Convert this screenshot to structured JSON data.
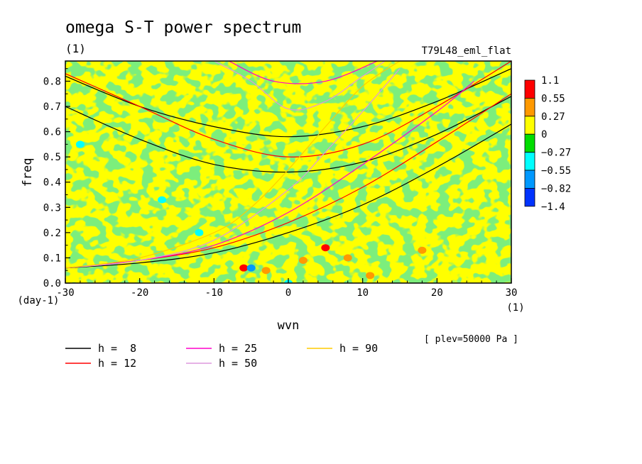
{
  "chart_data": {
    "type": "heatmap",
    "title": "omega S-T power spectrum",
    "subtitle": "(1)",
    "run_label": "T79L48_eml_flat",
    "xlabel": "wvn",
    "ylabel": "freq",
    "x_unit": "(1)",
    "y_unit": "(day-1)",
    "level_label": "[ plev=50000 Pa ]",
    "xlim": [
      -30,
      30
    ],
    "ylim": [
      0,
      0.88
    ],
    "x_ticks": [
      -30,
      -20,
      -10,
      0,
      10,
      20,
      30
    ],
    "x_tick_labels": [
      "-30",
      "-20",
      "-10",
      "0",
      "10",
      "20",
      "30"
    ],
    "y_ticks": [
      0,
      0.1,
      0.2,
      0.3,
      0.4,
      0.5,
      0.6,
      0.7,
      0.8
    ],
    "y_tick_labels": [
      "0.0",
      "0.1",
      "0.2",
      "0.3",
      "0.4",
      "0.5",
      "0.6",
      "0.7",
      "0.8"
    ],
    "colorbar": {
      "labels": [
        "1.1",
        "0.55",
        "0.27",
        "0",
        "−0.27",
        "−0.55",
        "−0.82",
        "−1.4"
      ],
      "colors": [
        "#ff0000",
        "#ff9900",
        "#ffff00",
        "#00dd00",
        "#00ffff",
        "#0099ff",
        "#0033ff"
      ]
    },
    "field_colors": {
      "yellow": "#ffff00",
      "green": "#33dd33",
      "orange": "#ff9900",
      "red": "#ff0000",
      "cyan": "#00ffff",
      "blue": "#0099ff"
    },
    "features": [
      {
        "x": 5,
        "y": 0.14,
        "level": "red"
      },
      {
        "x": -6,
        "y": 0.06,
        "level": "red"
      },
      {
        "x": -5,
        "y": 0.06,
        "level": "blue"
      },
      {
        "x": 0,
        "y": 0.0,
        "level": "cyan"
      },
      {
        "x": -12,
        "y": 0.2,
        "level": "cyan"
      },
      {
        "x": -17,
        "y": 0.33,
        "level": "cyan"
      },
      {
        "x": -28,
        "y": 0.55,
        "level": "cyan"
      },
      {
        "x": 2,
        "y": 0.09,
        "level": "orange"
      },
      {
        "x": 8,
        "y": 0.1,
        "level": "orange"
      },
      {
        "x": 11,
        "y": 0.03,
        "level": "orange"
      },
      {
        "x": 18,
        "y": 0.13,
        "level": "orange"
      },
      {
        "x": -3,
        "y": 0.05,
        "level": "orange"
      }
    ],
    "legend": [
      {
        "label": "h =  8",
        "color": "#000000",
        "h": 8
      },
      {
        "label": "h = 12",
        "color": "#ff0000",
        "h": 12
      },
      {
        "label": "h = 25",
        "color": "#ff00cc",
        "h": 25
      },
      {
        "label": "h = 50",
        "color": "#dd99dd",
        "h": 50
      },
      {
        "label": "h = 90",
        "color": "#ffcc00",
        "h": 90
      }
    ],
    "curves": [
      {
        "name": "h8-inertia-gravity-1",
        "color": "#000000",
        "points": [
          [
            -30,
            0.7
          ],
          [
            -20,
            0.57
          ],
          [
            -10,
            0.47
          ],
          [
            0,
            0.44
          ],
          [
            10,
            0.48
          ],
          [
            20,
            0.59
          ],
          [
            30,
            0.74
          ]
        ]
      },
      {
        "name": "h8-inertia-gravity-2",
        "color": "#000000",
        "points": [
          [
            -30,
            0.82
          ],
          [
            -20,
            0.7
          ],
          [
            -10,
            0.62
          ],
          [
            0,
            0.58
          ],
          [
            10,
            0.62
          ],
          [
            20,
            0.72
          ],
          [
            30,
            0.85
          ]
        ]
      },
      {
        "name": "h8-kelvin",
        "color": "#000000",
        "points": [
          [
            -30,
            0.06
          ],
          [
            -20,
            0.08
          ],
          [
            -10,
            0.12
          ],
          [
            0,
            0.2
          ],
          [
            10,
            0.31
          ],
          [
            20,
            0.46
          ],
          [
            30,
            0.63
          ]
        ]
      },
      {
        "name": "h12-inertia-gravity",
        "color": "#ff0000",
        "points": [
          [
            -30,
            0.83
          ],
          [
            -20,
            0.7
          ],
          [
            -10,
            0.57
          ],
          [
            0,
            0.5
          ],
          [
            10,
            0.55
          ],
          [
            20,
            0.7
          ],
          [
            30,
            0.88
          ]
        ]
      },
      {
        "name": "h12-kelvin",
        "color": "#ff0000",
        "points": [
          [
            -30,
            0.06
          ],
          [
            -20,
            0.09
          ],
          [
            -10,
            0.14
          ],
          [
            0,
            0.24
          ],
          [
            10,
            0.38
          ],
          [
            20,
            0.56
          ],
          [
            30,
            0.75
          ]
        ]
      },
      {
        "name": "h25-inertia-gravity",
        "color": "#ff00cc",
        "points": [
          [
            -8,
            0.88
          ],
          [
            -2,
            0.8
          ],
          [
            5,
            0.8
          ],
          [
            12,
            0.88
          ]
        ]
      },
      {
        "name": "h25-kelvin",
        "color": "#ff00cc",
        "points": [
          [
            -30,
            0.06
          ],
          [
            -20,
            0.09
          ],
          [
            -10,
            0.15
          ],
          [
            0,
            0.28
          ],
          [
            10,
            0.47
          ],
          [
            20,
            0.68
          ],
          [
            25,
            0.8
          ]
        ]
      },
      {
        "name": "h50-inertia-gravity",
        "color": "#dd99dd",
        "points": [
          [
            -10,
            0.88
          ],
          [
            -5,
            0.8
          ],
          [
            0,
            0.69
          ],
          [
            5,
            0.72
          ],
          [
            10,
            0.82
          ],
          [
            13,
            0.88
          ]
        ]
      },
      {
        "name": "h50-kelvin",
        "color": "#dd99dd",
        "points": [
          [
            -30,
            0.06
          ],
          [
            -20,
            0.09
          ],
          [
            -10,
            0.17
          ],
          [
            0,
            0.37
          ],
          [
            5,
            0.52
          ],
          [
            10,
            0.68
          ],
          [
            15,
            0.85
          ]
        ]
      },
      {
        "name": "h90-kelvin",
        "color": "#ffcc00",
        "points": [
          [
            -30,
            0.06
          ],
          [
            -20,
            0.1
          ],
          [
            -10,
            0.2
          ],
          [
            -5,
            0.3
          ],
          [
            0,
            0.45
          ],
          [
            5,
            0.62
          ],
          [
            10,
            0.78
          ],
          [
            15,
            0.88
          ]
        ]
      }
    ]
  }
}
